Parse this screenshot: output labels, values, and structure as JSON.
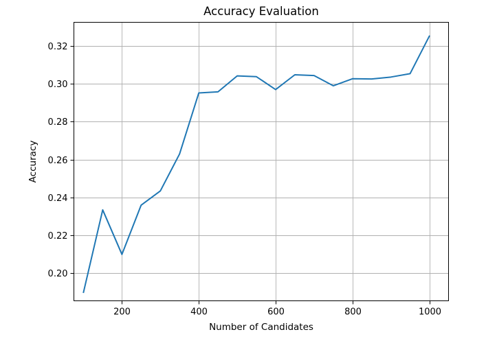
{
  "chart_data": {
    "type": "line",
    "title": "Accuracy Evaluation",
    "xlabel": "Number of Candidates",
    "ylabel": "Accuracy",
    "xlim": [
      75,
      1050
    ],
    "ylim": [
      0.1855,
      0.3325
    ],
    "grid": true,
    "legend": "none",
    "x_ticks": [
      200,
      400,
      600,
      800,
      1000
    ],
    "x_tick_labels": [
      "200",
      "400",
      "600",
      "800",
      "1000"
    ],
    "y_ticks": [
      0.2,
      0.22,
      0.24,
      0.26,
      0.28,
      0.3,
      0.32
    ],
    "y_tick_labels": [
      "0.20",
      "0.22",
      "0.24",
      "0.26",
      "0.28",
      "0.30",
      "0.32"
    ],
    "series": [
      {
        "color": "#1f77b4",
        "x": [
          100,
          150,
          200,
          250,
          300,
          350,
          400,
          450,
          500,
          550,
          600,
          650,
          700,
          750,
          800,
          850,
          900,
          950,
          1000
        ],
        "y": [
          0.19,
          0.2335,
          0.21,
          0.236,
          0.2435,
          0.263,
          0.2952,
          0.2958,
          0.3042,
          0.3038,
          0.297,
          0.3048,
          0.3044,
          0.299,
          0.3027,
          0.3026,
          0.3036,
          0.3054,
          0.3252
        ]
      }
    ]
  }
}
